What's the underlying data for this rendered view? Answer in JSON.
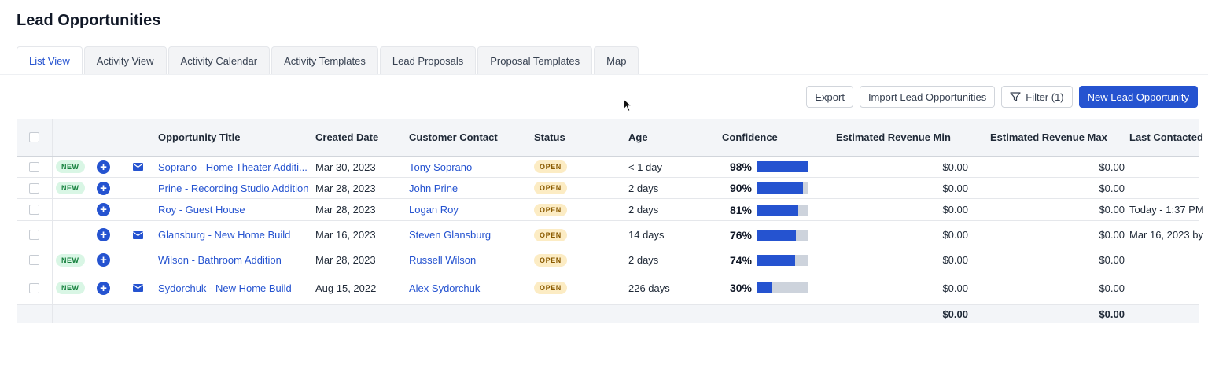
{
  "page": {
    "title": "Lead Opportunities"
  },
  "tabs": [
    {
      "label": "List View",
      "active": true
    },
    {
      "label": "Activity View"
    },
    {
      "label": "Activity Calendar"
    },
    {
      "label": "Activity Templates"
    },
    {
      "label": "Lead Proposals"
    },
    {
      "label": "Proposal Templates"
    },
    {
      "label": "Map"
    }
  ],
  "toolbar": {
    "export_label": "Export",
    "import_label": "Import Lead Opportunities",
    "filter_label": "Filter (1)",
    "new_label": "New Lead Opportunity"
  },
  "colors": {
    "accent": "#2553d0",
    "new_badge": "#d9f6e5",
    "open_badge": "#fcecc4"
  },
  "table": {
    "columns": {
      "title": "Opportunity Title",
      "created": "Created Date",
      "contact": "Customer Contact",
      "status": "Status",
      "age": "Age",
      "confidence": "Confidence",
      "rev_min": "Estimated Revenue Min",
      "rev_max": "Estimated Revenue Max",
      "last_contacted": "Last Contacted"
    },
    "rows": [
      {
        "is_new": true,
        "new_label": "NEW",
        "has_mail": true,
        "title": "Soprano - Home Theater Additi...",
        "created": "Mar 30, 2023",
        "contact": "Tony Soprano",
        "status": "OPEN",
        "age": "< 1 day",
        "confidence_label": "98%",
        "confidence": 0.98,
        "rev_min": "$0.00",
        "rev_max": "$0.00",
        "last_contacted": ""
      },
      {
        "is_new": true,
        "new_label": "NEW",
        "has_mail": false,
        "title": "Prine - Recording Studio Addition",
        "created": "Mar 28, 2023",
        "contact": "John Prine",
        "status": "OPEN",
        "age": "2 days",
        "confidence_label": "90%",
        "confidence": 0.9,
        "rev_min": "$0.00",
        "rev_max": "$0.00",
        "last_contacted": ""
      },
      {
        "is_new": false,
        "new_label": "",
        "has_mail": false,
        "title": "Roy - Guest House",
        "created": "Mar 28, 2023",
        "contact": "Logan Roy",
        "status": "OPEN",
        "age": "2 days",
        "confidence_label": "81%",
        "confidence": 0.81,
        "rev_min": "$0.00",
        "rev_max": "$0.00",
        "last_contacted": "Today - 1:37 PM"
      },
      {
        "is_new": false,
        "new_label": "",
        "has_mail": true,
        "title": "Glansburg - New Home Build",
        "created": "Mar 16, 2023",
        "contact": "Steven Glansburg",
        "status": "OPEN",
        "age": "14 days",
        "confidence_label": "76%",
        "confidence": 0.76,
        "rev_min": "$0.00",
        "rev_max": "$0.00",
        "last_contacted": "Mar 16, 2023 by"
      },
      {
        "is_new": true,
        "new_label": "NEW",
        "has_mail": false,
        "title": "Wilson - Bathroom Addition",
        "created": "Mar 28, 2023",
        "contact": "Russell Wilson",
        "status": "OPEN",
        "age": "2 days",
        "confidence_label": "74%",
        "confidence": 0.74,
        "rev_min": "$0.00",
        "rev_max": "$0.00",
        "last_contacted": ""
      },
      {
        "is_new": true,
        "new_label": "NEW",
        "has_mail": true,
        "title": "Sydorchuk - New Home Build",
        "created": "Aug 15, 2022",
        "contact": "Alex Sydorchuk",
        "status": "OPEN",
        "age": "226 days",
        "confidence_label": "30%",
        "confidence": 0.3,
        "rev_min": "$0.00",
        "rev_max": "$0.00",
        "last_contacted": ""
      }
    ],
    "totals": {
      "rev_min": "$0.00",
      "rev_max": "$0.00"
    }
  }
}
